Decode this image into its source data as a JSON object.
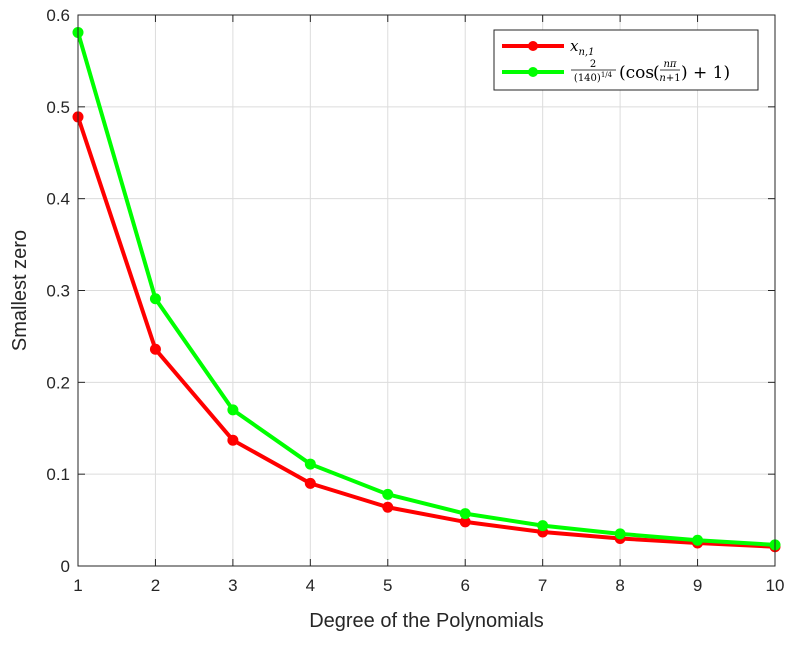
{
  "chart_data": {
    "type": "line",
    "x": [
      1,
      2,
      3,
      4,
      5,
      6,
      7,
      8,
      9,
      10
    ],
    "series": [
      {
        "name": "x_{n,1}",
        "color": "#ff0000",
        "values": [
          0.489,
          0.236,
          0.137,
          0.09,
          0.064,
          0.048,
          0.037,
          0.03,
          0.025,
          0.021
        ]
      },
      {
        "name": "2/(140)^{1/4} (cos(nπ/(n+1)) + 1)",
        "color": "#00ff00",
        "values": [
          0.581,
          0.291,
          0.17,
          0.111,
          0.078,
          0.057,
          0.044,
          0.035,
          0.028,
          0.023
        ]
      }
    ],
    "xlabel": "Degree of the Polynomials",
    "ylabel": "Smallest zero",
    "xlim": [
      1,
      10
    ],
    "ylim": [
      0,
      0.6
    ],
    "xticks": [
      "1",
      "2",
      "3",
      "4",
      "5",
      "6",
      "7",
      "8",
      "9",
      "10"
    ],
    "yticks": [
      "0",
      "0.1",
      "0.2",
      "0.3",
      "0.4",
      "0.5",
      "0.6"
    ],
    "grid": true,
    "legend_position": "top-right"
  }
}
